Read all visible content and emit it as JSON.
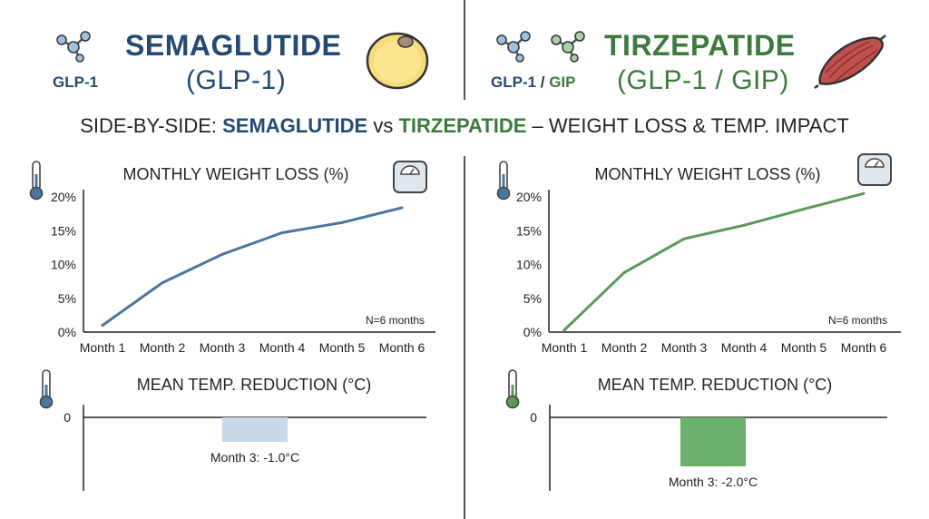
{
  "header": {
    "left": {
      "name": "SEMAGLUTIDE",
      "class_label": "(GLP-1)",
      "receptor_label": "GLP-1",
      "color": "#254a72"
    },
    "right": {
      "name": "TIRZEPATIDE",
      "class_label": "(GLP-1 / GIP)",
      "receptor_label_a": "GLP-1",
      "receptor_sep": " / ",
      "receptor_label_b": "GIP",
      "color": "#3d7a3d"
    }
  },
  "headline": {
    "prefix": "SIDE-BY-SIDE: ",
    "drug_a": "SEMAGLUTIDE",
    "mid": " vs ",
    "drug_b": "TIRZEPATIDE",
    "suffix": " – WEIGHT LOSS & TEMP. IMPACT"
  },
  "icons": {
    "molecule": "molecule-icon",
    "fat_cell": "fat-cell-icon",
    "muscle": "muscle-icon",
    "thermometer": "thermometer-icon",
    "scale": "bathroom-scale-icon"
  },
  "colors": {
    "semaglutide_line": "#4a76a0",
    "tirzepatide_line": "#5a9a58",
    "semaglutide_bar": "#c8d8ea",
    "tirzepatide_bar": "#6aaf6a"
  },
  "chart_data": [
    {
      "id": "sema-weight",
      "type": "line",
      "title": "MONTHLY WEIGHT LOSS (%)",
      "categories": [
        "Month 1",
        "Month 2",
        "Month 3",
        "Month 4",
        "Month 5",
        "Month 6"
      ],
      "values": [
        1,
        7.3,
        11.5,
        14.7,
        16.2,
        18.4
      ],
      "yticks": [
        "0%",
        "5%",
        "10%",
        "15%",
        "20%"
      ],
      "ylim": [
        0,
        20
      ],
      "annotation": "N=6 months",
      "grid": false
    },
    {
      "id": "tirz-weight",
      "type": "line",
      "title": "MONTHLY WEIGHT LOSS (%)",
      "categories": [
        "Month 1",
        "Month 2",
        "Month 3",
        "Month 4",
        "Month 5",
        "Month 6"
      ],
      "values": [
        0.3,
        8.8,
        13.8,
        15.8,
        18.2,
        20.5
      ],
      "yticks": [
        "0%",
        "5%",
        "10%",
        "15%",
        "20%"
      ],
      "ylim": [
        0,
        20
      ],
      "annotation": "N=6 months",
      "grid": false
    },
    {
      "id": "sema-temp",
      "type": "bar",
      "title": "MEAN TEMP. REDUCTION (°C)",
      "categories": [
        "Month 3"
      ],
      "values": [
        -1.0
      ],
      "ytick": "0",
      "ylim": [
        -3,
        0
      ],
      "data_label": "Month 3: -1.0°C"
    },
    {
      "id": "tirz-temp",
      "type": "bar",
      "title": "MEAN TEMP. REDUCTION (°C)",
      "categories": [
        "Month 3"
      ],
      "values": [
        -2.0
      ],
      "ytick": "0",
      "ylim": [
        -3,
        0
      ],
      "data_label": "Month 3: -2.0°C"
    }
  ]
}
